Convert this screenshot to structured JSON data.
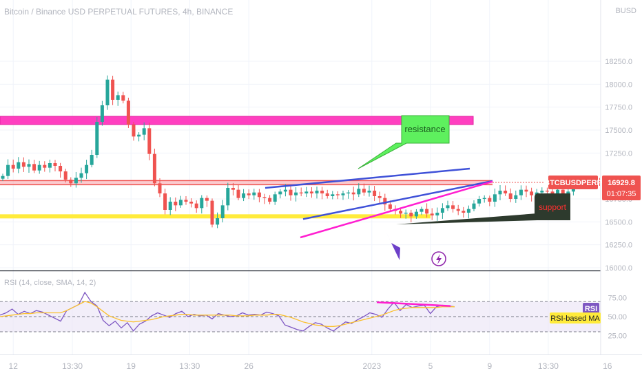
{
  "header": {
    "title": "Bitcoin / Binance USD PERPETUAL FUTURES, 4h, BINANCE",
    "currency": "BUSD"
  },
  "price_axis": {
    "ticks": [
      {
        "value": 18250,
        "label": "18250.0"
      },
      {
        "value": 18000,
        "label": "18000.0"
      },
      {
        "value": 17750,
        "label": "17750.0"
      },
      {
        "value": 17500,
        "label": "17500.0"
      },
      {
        "value": 17250,
        "label": "17250.0"
      },
      {
        "value": 16750,
        "label": "16750.0"
      },
      {
        "value": 16500,
        "label": "16500.0"
      },
      {
        "value": 16250,
        "label": "16250.0"
      },
      {
        "value": 16000,
        "label": "16000.0"
      }
    ],
    "last_symbol": "BTCBUSDPERP",
    "last_price": "16929.8",
    "countdown": "01:07:35",
    "last_value": 16929.8
  },
  "rsi": {
    "title": "RSI (14, close, SMA, 14, 2)",
    "ticks": [
      {
        "value": 75,
        "label": "75.00"
      },
      {
        "value": 50,
        "label": "50.00"
      },
      {
        "value": 25,
        "label": "25.00"
      }
    ],
    "badge": "RSI",
    "ma_badge": "RSI-based MA",
    "bands": [
      30,
      50,
      70
    ]
  },
  "time_axis": {
    "labels": [
      {
        "t": 2,
        "label": "12"
      },
      {
        "t": 13.3,
        "label": "13:30"
      },
      {
        "t": 24.5,
        "label": "19"
      },
      {
        "t": 35.7,
        "label": "13:30"
      },
      {
        "t": 47,
        "label": "26"
      },
      {
        "t": 70.5,
        "label": "2023"
      },
      {
        "t": 81.7,
        "label": "5"
      },
      {
        "t": 93,
        "label": "9"
      },
      {
        "t": 104.2,
        "label": "13:30"
      },
      {
        "t": 115.5,
        "label": "16"
      }
    ]
  },
  "annotations": {
    "resistance_label": "resistance",
    "support_label": "support",
    "colors": {
      "magenta_zone": "#ff3fc0",
      "yellow_line": "#ffeb3b",
      "blue_line": "#3f51d8",
      "magenta_line": "#ff1ed0",
      "resistance_bg": "#5ef05e",
      "support_bg": "#2d3a2d",
      "support_text": "#ff3030",
      "arrow": "#6c3fc8"
    }
  },
  "chart_data": {
    "type": "candlestick",
    "title": "Bitcoin / Binance USD PERPETUAL FUTURES, 4h, BINANCE",
    "xlabel": "",
    "ylabel": "BUSD",
    "ylim": [
      16000,
      18400
    ],
    "horizontal_levels": [
      {
        "name": "price line",
        "value": 16929.8
      },
      {
        "name": "support level",
        "value": 16560
      }
    ],
    "zones": [
      {
        "from": 17560,
        "to": 17650
      }
    ],
    "closes": [
      17000,
      17120,
      17080,
      17150,
      17100,
      17130,
      17060,
      17120,
      17090,
      17140,
      17110,
      17050,
      16960,
      16920,
      16980,
      17030,
      17120,
      17230,
      17590,
      17770,
      18050,
      17830,
      17880,
      17820,
      17560,
      17430,
      17450,
      17520,
      17240,
      16920,
      16810,
      16630,
      16720,
      16680,
      16740,
      16720,
      16700,
      16650,
      16760,
      16730,
      16470,
      16540,
      16680,
      16870,
      16850,
      16760,
      16810,
      16790,
      16820,
      16770,
      16760,
      16720,
      16800,
      16830,
      16850,
      16790,
      16820,
      16810,
      16830,
      16810,
      16840,
      16810,
      16780,
      16800,
      16790,
      16810,
      16820,
      16800,
      16860,
      16820,
      16840,
      16780,
      16760,
      16690,
      16640,
      16620,
      16590,
      16600,
      16560,
      16610,
      16640,
      16590,
      16570,
      16600,
      16650,
      16680,
      16640,
      16620,
      16600,
      16640,
      16700,
      16750,
      16760,
      16720,
      16800,
      16840,
      16810,
      16750,
      16790,
      16850,
      16830,
      16790,
      16820,
      16840,
      16830,
      16800,
      16850,
      16810,
      16830,
      16910,
      16920,
      16940,
      16930,
      16935,
      16929.8
    ],
    "rsi": [
      52,
      55,
      60,
      53,
      57,
      54,
      58,
      56,
      52,
      48,
      44,
      58,
      62,
      66,
      82,
      70,
      64,
      45,
      38,
      44,
      35,
      42,
      31,
      40,
      44,
      51,
      55,
      52,
      49,
      54,
      57,
      50,
      53,
      51,
      52,
      47,
      54,
      52,
      50,
      51,
      55,
      52,
      53,
      52,
      56,
      54,
      51,
      39,
      36,
      33,
      31,
      37,
      42,
      40,
      35,
      31,
      37,
      43,
      41,
      46,
      50,
      55,
      53,
      49,
      60,
      69,
      58,
      66,
      62,
      64,
      65,
      54,
      63,
      65,
      64,
      63
    ],
    "rsi_ma": [
      50,
      51,
      52,
      53,
      54,
      54,
      55,
      55,
      55,
      55,
      55,
      58,
      62,
      66,
      70,
      68,
      63,
      57,
      51,
      48,
      45,
      44,
      43,
      44,
      45,
      46,
      48,
      50,
      51,
      52,
      53,
      53,
      52,
      52,
      52,
      52,
      52,
      52,
      52,
      51,
      51,
      51,
      52,
      52,
      52,
      53,
      53,
      51,
      49,
      46,
      43,
      41,
      39,
      38,
      37,
      37,
      38,
      40,
      42,
      44,
      46,
      48,
      50,
      52,
      55,
      58,
      60,
      61,
      62,
      62,
      62,
      62,
      62,
      63,
      63,
      63
    ]
  }
}
